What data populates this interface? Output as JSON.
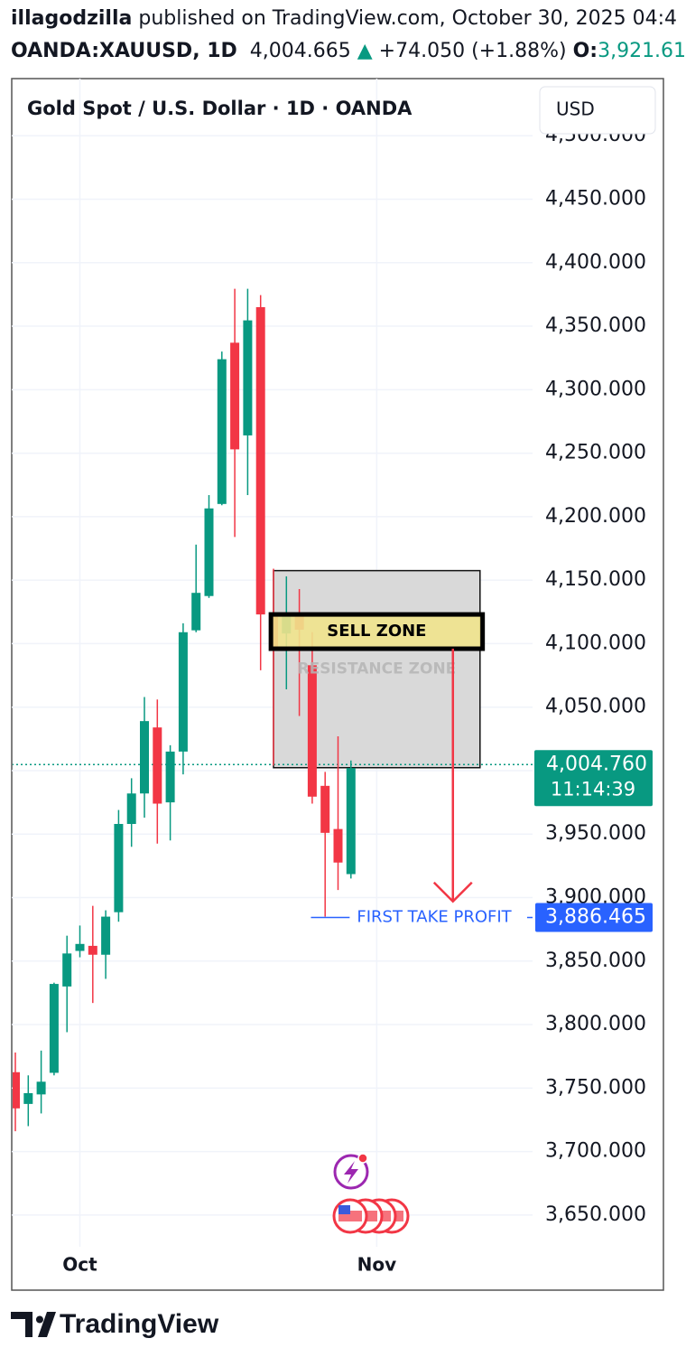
{
  "header": {
    "author": "illagodzilla",
    "published": "published on TradingView.com, October 30, 2025 04:4",
    "symbol": "OANDA:XAUUSD, 1D",
    "last": "4,004.665",
    "arrow": "▲",
    "change": "+74.050 (+1.88%)",
    "open_label": "O:",
    "open": "3,921.61"
  },
  "chart_data": {
    "type": "candlestick",
    "title": "Gold Spot / U.S. Dollar · 1D · OANDA",
    "currency": "USD",
    "x": [
      0,
      1,
      2,
      3,
      4,
      5,
      6,
      7,
      8,
      9,
      10,
      11,
      12,
      13,
      14,
      15,
      16,
      17,
      18,
      19,
      20,
      21,
      22,
      23,
      24,
      25,
      26
    ],
    "open": [
      3762.5,
      3737.5,
      3745,
      3762,
      3830,
      3858,
      3862,
      3855,
      3888.5,
      3958,
      3982,
      4034,
      3975,
      4015,
      4110.5,
      4137.5,
      4210,
      4337,
      4264,
      4365,
      4123,
      4108,
      4123,
      4083,
      3988,
      3954,
      3918.5
    ],
    "high": [
      3778,
      3760,
      3779.5,
      3833,
      3870,
      3878,
      3893.5,
      3890,
      3969,
      3994,
      4058,
      4056,
      4020,
      4116,
      4178,
      4217,
      4330,
      4379.5,
      4379.5,
      4374.5,
      4159,
      4153,
      4143,
      4109,
      3999,
      4027,
      4008
    ],
    "low": [
      3716,
      3720,
      3730,
      3760,
      3794,
      3853,
      3817,
      3836,
      3881,
      3940,
      3963,
      3942.5,
      3945,
      3997,
      4109,
      4136,
      4209,
      4184,
      4217,
      4079,
      4004,
      4064,
      4043,
      3974,
      3885,
      3906,
      3915
    ],
    "close": [
      3734,
      3746,
      3755,
      3832,
      3856,
      3863.5,
      3855,
      3885,
      3958,
      3982,
      4039,
      3974,
      4015,
      4109,
      4140,
      4206.5,
      4324,
      4253,
      4354.6,
      4123,
      4096,
      4123,
      4111,
      3979.5,
      3951,
      3927.6,
      4002
    ],
    "up_color": "#089981",
    "down_color": "#f23645",
    "xlim": [
      -0.28,
      40.07
    ],
    "xticks": [
      {
        "value": 5,
        "label": "Oct"
      },
      {
        "value": 28,
        "label": "Nov"
      }
    ],
    "ylim": [
      3625,
      4545
    ],
    "yticks": [
      {
        "value": 3650,
        "label": "3,650.000"
      },
      {
        "value": 3700,
        "label": "3,700.000"
      },
      {
        "value": 3750,
        "label": "3,750.000"
      },
      {
        "value": 3800,
        "label": "3,800.000"
      },
      {
        "value": 3850,
        "label": "3,850.000"
      },
      {
        "value": 3900,
        "label": "3,900.000"
      },
      {
        "value": 3950,
        "label": "3,950.000"
      },
      {
        "value": 4000,
        "label": "4,000.000"
      },
      {
        "value": 4050,
        "label": "4,050.000"
      },
      {
        "value": 4100,
        "label": "4,100.000"
      },
      {
        "value": 4150,
        "label": "4,150.000"
      },
      {
        "value": 4200,
        "label": "4,200.000"
      },
      {
        "value": 4250,
        "label": "4,250.000"
      },
      {
        "value": 4300,
        "label": "4,300.000"
      },
      {
        "value": 4350,
        "label": "4,350.000"
      },
      {
        "value": 4400,
        "label": "4,400.000"
      },
      {
        "value": 4450,
        "label": "4,450.000"
      },
      {
        "value": 4500,
        "label": "4,500.000"
      }
    ],
    "grid": true,
    "current_price": {
      "value": 4004.76,
      "label": "4,004.760",
      "countdown": "11:14:39"
    },
    "annotations": {
      "resistance_zone": {
        "text": "RESISTANCE ZONE",
        "x": [
          20,
          36
        ],
        "y": [
          4002.3,
          4157.5
        ]
      },
      "sell_zone": {
        "text": "SELL ZONE",
        "x": [
          19.8,
          36.2
        ],
        "y": [
          4096,
          4123
        ]
      },
      "arrow": {
        "x": 33.9,
        "y": [
          4096,
          3897
        ]
      },
      "take_profit": {
        "text": "FIRST TAKE PROFIT",
        "value": 3886.465,
        "label": "3,886.465",
        "x": [
          22.9,
          25.9
        ]
      }
    }
  },
  "footer": {
    "brand": "TradingView"
  }
}
